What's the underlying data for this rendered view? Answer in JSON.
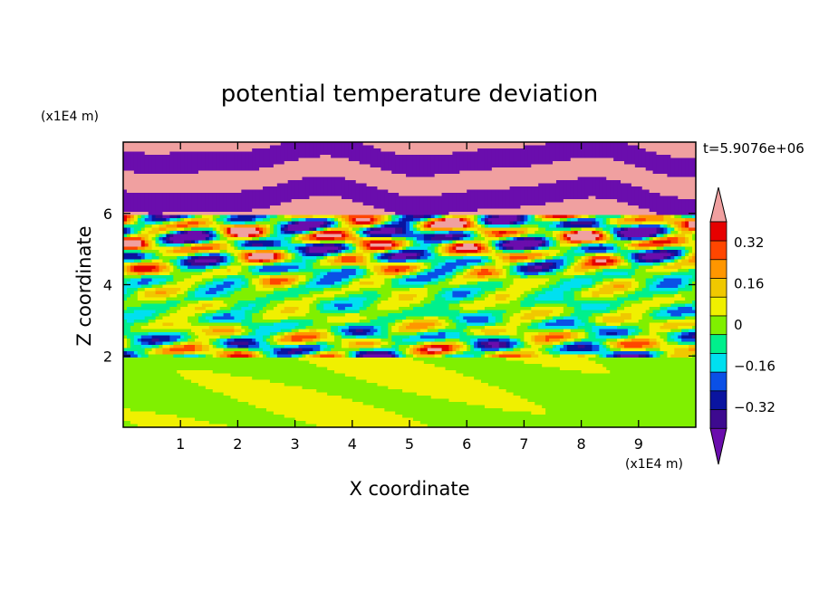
{
  "chart_data": {
    "type": "heatmap",
    "title": "potential temperature deviation",
    "xlabel": "X coordinate",
    "ylabel": "Z coordinate",
    "x_unit": "(x1E4 m)",
    "y_unit": "(x1E4 m)",
    "time_label": "t=5.9076e+06",
    "xlim": [
      0,
      10
    ],
    "ylim": [
      0,
      8
    ],
    "x_ticks": [
      1,
      2,
      3,
      4,
      5,
      6,
      7,
      8,
      9
    ],
    "y_ticks": [
      2,
      4,
      6
    ],
    "colorbar": {
      "levels": [
        -0.48,
        -0.4,
        -0.32,
        -0.24,
        -0.16,
        -0.08,
        0,
        0.08,
        0.16,
        0.24,
        0.32,
        0.4,
        0.48
      ],
      "tick_labels": [
        "0.32",
        "0.16",
        "0",
        "−0.16",
        "−0.32"
      ],
      "tick_values": [
        0.32,
        0.16,
        0,
        -0.16,
        -0.32
      ],
      "colors": [
        "#6a0dad",
        "#3d0a8f",
        "#0a14a0",
        "#0a50e6",
        "#00e0f0",
        "#00f08c",
        "#80f000",
        "#f0f000",
        "#f0c800",
        "#ff9600",
        "#ff4600",
        "#e60000",
        "#f0a0a0"
      ],
      "extend": "both"
    },
    "field_description": {
      "lower_layer": "weak positive and negative deviations, 0 to 2",
      "middle_layer": "strong alternating wave bands, 2 to 6",
      "upper_layer": "alternating pink and purple saturated bands, 6 to 8"
    }
  }
}
